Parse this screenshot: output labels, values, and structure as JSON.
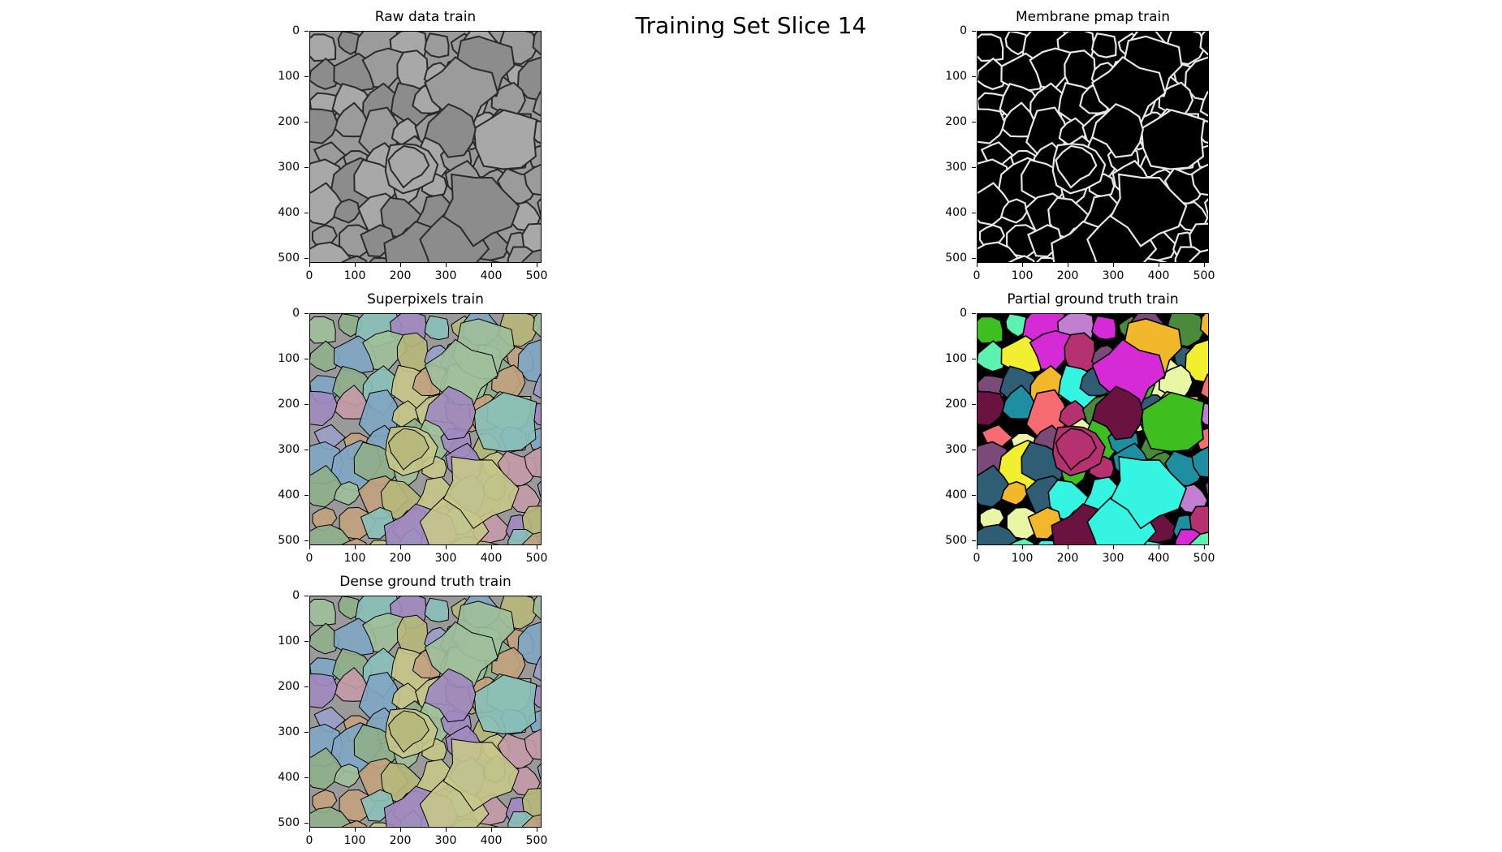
{
  "figure": {
    "suptitle": "Training Set Slice 14"
  },
  "axis_ticks": [
    "0",
    "100",
    "200",
    "300",
    "400",
    "500"
  ],
  "panels": [
    {
      "id": "raw",
      "title": "Raw data train",
      "style": "em-raw"
    },
    {
      "id": "pmap",
      "title": "Membrane pmap train",
      "style": "membrane"
    },
    {
      "id": "superpixels",
      "title": "Superpixels train",
      "style": "overlay-sp"
    },
    {
      "id": "partial",
      "title": "Partial ground truth train",
      "style": "partial-gt"
    },
    {
      "id": "dense",
      "title": "Dense ground truth train",
      "style": "overlay-dense"
    }
  ],
  "colors": {
    "raw_bg": "#9a9a9a",
    "raw_membrane": "#2a2a2a",
    "pmap_bg": "#000000",
    "pmap_membrane": "#e8e8e8",
    "segment_border": "#000000",
    "partial_palette": [
      "#5cf2b0",
      "#c07fd0",
      "#f76b73",
      "#34f4e2",
      "#3fbf1f",
      "#e9f7a5",
      "#6a1240",
      "#7b4a78",
      "#4b8a3a",
      "#f0b82a",
      "#2e5d74",
      "#1e8fa0",
      "#f2ee30",
      "#b5316f",
      "#d62ad6"
    ],
    "overlay_palette": [
      "#8fb08a",
      "#c49aa8",
      "#9aa0c8",
      "#b6b87a",
      "#8ac0b8",
      "#c2a27e",
      "#a08ac0",
      "#7fa6c4",
      "#c7c78a",
      "#9fc09a"
    ]
  }
}
